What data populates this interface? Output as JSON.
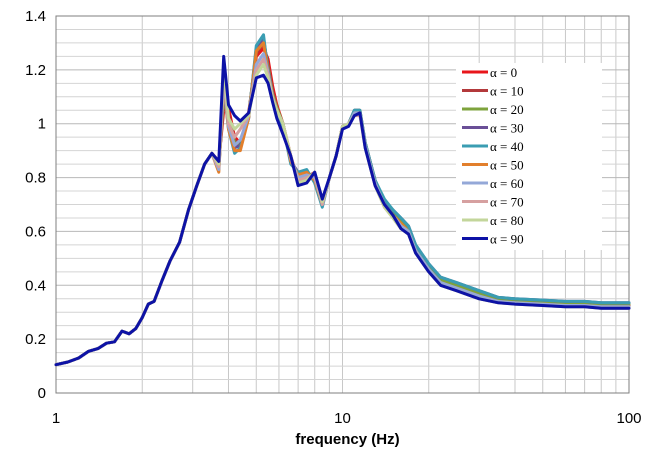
{
  "chart_data": {
    "type": "line",
    "title": "",
    "xlabel": "frequency (Hz)",
    "ylabel": "",
    "x_scale": "log",
    "xlim": [
      1,
      100
    ],
    "ylim": [
      0,
      1.4
    ],
    "x_ticks": [
      "1",
      "10",
      "100"
    ],
    "y_ticks": [
      "0",
      "0.2",
      "0.4",
      "0.6",
      "0.8",
      "1",
      "1.2",
      "1.4"
    ],
    "grid": true,
    "legend_position": "right",
    "x": [
      1,
      1.1,
      1.2,
      1.3,
      1.4,
      1.5,
      1.6,
      1.7,
      1.8,
      1.9,
      2,
      2.1,
      2.2,
      2.35,
      2.5,
      2.7,
      2.9,
      3.1,
      3.3,
      3.5,
      3.7,
      3.85,
      4,
      4.2,
      4.4,
      4.7,
      5.0,
      5.3,
      5.5,
      5.7,
      5.9,
      6.2,
      6.6,
      7.0,
      7.5,
      8.0,
      8.5,
      9.0,
      9.5,
      10,
      10.5,
      11,
      11.5,
      12,
      13,
      14,
      15,
      16,
      17,
      18,
      20,
      22,
      25,
      30,
      35,
      40,
      50,
      60,
      70,
      80,
      100
    ],
    "series": [
      {
        "name": "α = 0",
        "color": "#e8161b",
        "values": [
          0.105,
          0.115,
          0.13,
          0.155,
          0.165,
          0.185,
          0.19,
          0.23,
          0.22,
          0.24,
          0.28,
          0.33,
          0.34,
          0.42,
          0.49,
          0.56,
          0.68,
          0.77,
          0.85,
          0.89,
          0.86,
          1.05,
          1.06,
          0.95,
          0.93,
          1.04,
          1.25,
          1.28,
          1.24,
          1.14,
          1.07,
          1.0,
          0.88,
          0.79,
          0.8,
          0.82,
          0.7,
          0.8,
          0.88,
          0.99,
          1.0,
          1.04,
          1.04,
          0.92,
          0.78,
          0.7,
          0.66,
          0.62,
          0.6,
          0.53,
          0.46,
          0.41,
          0.39,
          0.36,
          0.34,
          0.335,
          0.33,
          0.325,
          0.325,
          0.32,
          0.32
        ]
      },
      {
        "name": "α = 10",
        "color": "#b3393b",
        "values": [
          0.105,
          0.115,
          0.13,
          0.155,
          0.165,
          0.185,
          0.19,
          0.23,
          0.22,
          0.24,
          0.28,
          0.33,
          0.34,
          0.42,
          0.49,
          0.56,
          0.68,
          0.77,
          0.85,
          0.89,
          0.85,
          1.08,
          1.04,
          0.94,
          0.92,
          1.03,
          1.26,
          1.3,
          1.22,
          1.12,
          1.06,
          1.0,
          0.87,
          0.8,
          0.81,
          0.81,
          0.7,
          0.8,
          0.88,
          0.99,
          1.0,
          1.04,
          1.04,
          0.92,
          0.78,
          0.7,
          0.66,
          0.63,
          0.6,
          0.53,
          0.46,
          0.41,
          0.39,
          0.36,
          0.345,
          0.34,
          0.33,
          0.33,
          0.33,
          0.325,
          0.325
        ]
      },
      {
        "name": "α = 20",
        "color": "#7ea33c",
        "values": [
          0.105,
          0.115,
          0.13,
          0.155,
          0.165,
          0.185,
          0.19,
          0.23,
          0.22,
          0.24,
          0.28,
          0.33,
          0.34,
          0.42,
          0.49,
          0.56,
          0.68,
          0.77,
          0.85,
          0.89,
          0.84,
          1.1,
          1.02,
          0.93,
          0.92,
          1.03,
          1.27,
          1.31,
          1.21,
          1.11,
          1.06,
          1.0,
          0.86,
          0.81,
          0.82,
          0.8,
          0.7,
          0.8,
          0.88,
          0.99,
          1.0,
          1.05,
          1.05,
          0.93,
          0.79,
          0.71,
          0.67,
          0.64,
          0.61,
          0.54,
          0.47,
          0.42,
          0.4,
          0.37,
          0.35,
          0.345,
          0.34,
          0.335,
          0.335,
          0.33,
          0.33
        ]
      },
      {
        "name": "α = 30",
        "color": "#6a4f97",
        "values": [
          0.105,
          0.115,
          0.13,
          0.155,
          0.165,
          0.185,
          0.19,
          0.23,
          0.22,
          0.24,
          0.28,
          0.33,
          0.34,
          0.42,
          0.49,
          0.56,
          0.68,
          0.77,
          0.85,
          0.89,
          0.84,
          1.12,
          1.0,
          0.91,
          0.92,
          1.02,
          1.28,
          1.32,
          1.2,
          1.1,
          1.05,
          1.0,
          0.86,
          0.82,
          0.82,
          0.79,
          0.7,
          0.8,
          0.88,
          0.99,
          1.0,
          1.05,
          1.05,
          0.93,
          0.79,
          0.71,
          0.68,
          0.65,
          0.62,
          0.55,
          0.48,
          0.43,
          0.41,
          0.38,
          0.355,
          0.35,
          0.345,
          0.34,
          0.34,
          0.335,
          0.335
        ]
      },
      {
        "name": "α = 40",
        "color": "#3a9db2",
        "values": [
          0.105,
          0.115,
          0.13,
          0.155,
          0.165,
          0.185,
          0.19,
          0.23,
          0.22,
          0.24,
          0.28,
          0.33,
          0.34,
          0.42,
          0.49,
          0.56,
          0.68,
          0.77,
          0.85,
          0.89,
          0.83,
          1.14,
          0.98,
          0.89,
          0.91,
          1.02,
          1.29,
          1.33,
          1.19,
          1.09,
          1.05,
          0.99,
          0.85,
          0.82,
          0.83,
          0.78,
          0.69,
          0.8,
          0.88,
          0.99,
          1.0,
          1.05,
          1.05,
          0.93,
          0.79,
          0.72,
          0.68,
          0.65,
          0.62,
          0.55,
          0.48,
          0.43,
          0.41,
          0.38,
          0.355,
          0.35,
          0.345,
          0.34,
          0.34,
          0.335,
          0.335
        ]
      },
      {
        "name": "α = 50",
        "color": "#e27f2c",
        "values": [
          0.105,
          0.115,
          0.13,
          0.155,
          0.165,
          0.185,
          0.19,
          0.23,
          0.22,
          0.24,
          0.28,
          0.33,
          0.34,
          0.42,
          0.49,
          0.56,
          0.68,
          0.77,
          0.85,
          0.89,
          0.82,
          1.15,
          0.98,
          0.9,
          0.9,
          1.02,
          1.27,
          1.3,
          1.19,
          1.09,
          1.05,
          1.0,
          0.86,
          0.81,
          0.82,
          0.79,
          0.7,
          0.8,
          0.88,
          0.99,
          1.0,
          1.04,
          1.04,
          0.92,
          0.78,
          0.7,
          0.66,
          0.63,
          0.6,
          0.53,
          0.46,
          0.41,
          0.39,
          0.36,
          0.34,
          0.335,
          0.33,
          0.325,
          0.325,
          0.32,
          0.32
        ]
      },
      {
        "name": "α = 60",
        "color": "#94a8d8",
        "values": [
          0.105,
          0.115,
          0.13,
          0.155,
          0.165,
          0.185,
          0.19,
          0.23,
          0.22,
          0.24,
          0.28,
          0.33,
          0.34,
          0.42,
          0.49,
          0.56,
          0.68,
          0.77,
          0.85,
          0.89,
          0.83,
          1.17,
          0.99,
          0.92,
          0.94,
          1.03,
          1.22,
          1.26,
          1.19,
          1.1,
          1.05,
          1.0,
          0.87,
          0.8,
          0.81,
          0.8,
          0.7,
          0.8,
          0.88,
          0.99,
          1.0,
          1.04,
          1.04,
          0.92,
          0.78,
          0.7,
          0.66,
          0.62,
          0.6,
          0.53,
          0.46,
          0.41,
          0.39,
          0.36,
          0.34,
          0.335,
          0.33,
          0.325,
          0.325,
          0.32,
          0.32
        ]
      },
      {
        "name": "α = 70",
        "color": "#d6a0a0",
        "values": [
          0.105,
          0.115,
          0.13,
          0.155,
          0.165,
          0.185,
          0.19,
          0.23,
          0.22,
          0.24,
          0.28,
          0.33,
          0.34,
          0.42,
          0.49,
          0.56,
          0.68,
          0.77,
          0.85,
          0.89,
          0.84,
          1.19,
          1.0,
          0.95,
          0.98,
          1.03,
          1.2,
          1.24,
          1.18,
          1.1,
          1.05,
          1.0,
          0.87,
          0.79,
          0.8,
          0.81,
          0.7,
          0.8,
          0.88,
          0.99,
          1.0,
          1.03,
          1.03,
          0.91,
          0.77,
          0.69,
          0.65,
          0.61,
          0.59,
          0.52,
          0.45,
          0.4,
          0.38,
          0.35,
          0.335,
          0.33,
          0.325,
          0.32,
          0.32,
          0.315,
          0.315
        ]
      },
      {
        "name": "α = 80",
        "color": "#c3d69b",
        "values": [
          0.105,
          0.115,
          0.13,
          0.155,
          0.165,
          0.185,
          0.19,
          0.23,
          0.22,
          0.24,
          0.28,
          0.33,
          0.34,
          0.42,
          0.49,
          0.56,
          0.68,
          0.77,
          0.85,
          0.89,
          0.85,
          1.21,
          1.02,
          0.98,
          1.0,
          1.03,
          1.18,
          1.22,
          1.17,
          1.09,
          1.05,
          1.0,
          0.88,
          0.78,
          0.79,
          0.82,
          0.71,
          0.8,
          0.88,
          0.99,
          1.0,
          1.03,
          1.04,
          0.91,
          0.77,
          0.69,
          0.65,
          0.61,
          0.59,
          0.52,
          0.45,
          0.4,
          0.38,
          0.35,
          0.335,
          0.33,
          0.325,
          0.32,
          0.32,
          0.315,
          0.315
        ]
      },
      {
        "name": "α = 90",
        "color": "#0d12a6",
        "values": [
          0.105,
          0.115,
          0.13,
          0.155,
          0.165,
          0.185,
          0.19,
          0.23,
          0.22,
          0.24,
          0.28,
          0.33,
          0.34,
          0.42,
          0.49,
          0.56,
          0.68,
          0.77,
          0.85,
          0.89,
          0.86,
          1.25,
          1.07,
          1.03,
          1.01,
          1.04,
          1.17,
          1.18,
          1.15,
          1.08,
          1.02,
          0.96,
          0.88,
          0.77,
          0.78,
          0.82,
          0.72,
          0.8,
          0.88,
          0.98,
          0.99,
          1.03,
          1.04,
          0.91,
          0.77,
          0.7,
          0.66,
          0.61,
          0.59,
          0.52,
          0.45,
          0.4,
          0.38,
          0.35,
          0.335,
          0.33,
          0.325,
          0.32,
          0.32,
          0.315,
          0.315
        ]
      }
    ]
  }
}
